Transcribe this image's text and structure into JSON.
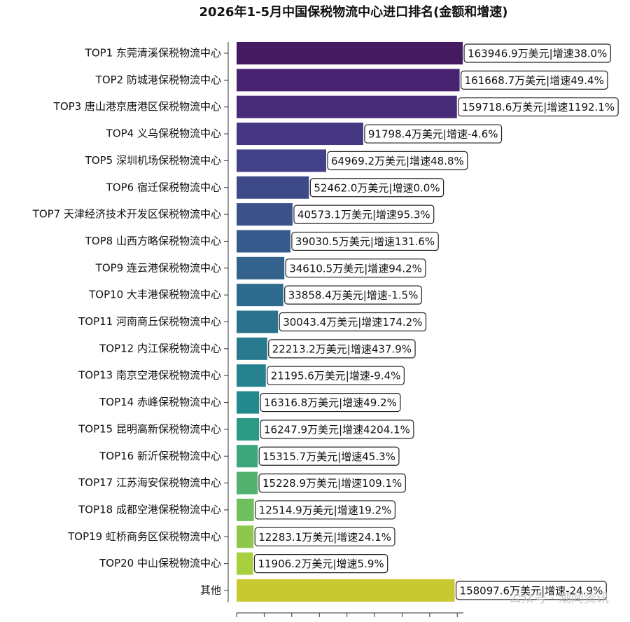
{
  "chart_data": {
    "type": "barh",
    "title": "2026年1-5月中国保税物流中心进口排名(金额和增速)",
    "categories": [
      "TOP1  东莞清溪保税物流中心",
      "TOP2  防城港保税物流中心",
      "TOP3  唐山港京唐港区保税物流中心",
      "TOP4  义乌保税物流中心",
      "TOP5  深圳机场保税物流中心",
      "TOP6  宿迁保税物流中心",
      "TOP7  天津经济技术开发区保税物流中心",
      "TOP8  山西方略保税物流中心",
      "TOP9  连云港保税物流中心",
      "TOP10  大丰港保税物流中心",
      "TOP11  河南商丘保税物流中心",
      "TOP12  内江保税物流中心",
      "TOP13  南京空港保税物流中心",
      "TOP14  赤峰保税物流中心",
      "TOP15  昆明高新保税物流中心",
      "TOP16  新沂保税物流中心",
      "TOP17  江苏海安保税物流中心",
      "TOP18  成都空港保税物流中心",
      "TOP19  虹桥商务区保税物流中心",
      "TOP20  中山保税物流中心",
      "其他"
    ],
    "values": [
      163946.9,
      161668.7,
      159718.6,
      91798.4,
      64969.2,
      52462,
      40573.1,
      39030.5,
      34610.5,
      33858.4,
      30043.4,
      22213.2,
      21195.6,
      16316.8,
      16247.9,
      15315.7,
      15228.9,
      12514.9,
      12283.1,
      11906.2,
      158097.6
    ],
    "value_labels": [
      "163946.9万美元|增速38.0%",
      "161668.7万美元|增速49.4%",
      "159718.6万美元|增速1192.1%",
      "91798.4万美元|增速-4.6%",
      "64969.2万美元|增速48.8%",
      "52462.0万美元|增速0.0%",
      "40573.1万美元|增速95.3%",
      "39030.5万美元|增速131.6%",
      "34610.5万美元|增速94.2%",
      "33858.4万美元|增速-1.5%",
      "30043.4万美元|增速174.2%",
      "22213.2万美元|增速437.9%",
      "21195.6万美元|增速-9.4%",
      "16316.8万美元|增速49.2%",
      "16247.9万美元|增速4204.1%",
      "15315.7万美元|增速45.3%",
      "15228.9万美元|增速109.1%",
      "12514.9万美元|增速19.2%",
      "12283.1万美元|增速24.1%",
      "11906.2万美元|增速5.9%",
      "158097.6万美元|增速-24.9%"
    ],
    "colors": [
      "#451a60",
      "#482372",
      "#472c7a",
      "#453781",
      "#424086",
      "#3e4989",
      "#3b528b",
      "#375a8c",
      "#33638d",
      "#2f6b8e",
      "#2c728e",
      "#29798e",
      "#26828e",
      "#23898e",
      "#2a9a82",
      "#3aa67a",
      "#52b26e",
      "#6fbf5e",
      "#8dc84d",
      "#a8cf3e",
      "#c8c832"
    ],
    "xlim": [
      0,
      170000
    ],
    "xticks": [
      0,
      20000,
      40000,
      60000,
      80000,
      100000,
      120000,
      140000,
      160000
    ],
    "annotation": "公众号 · 潮闻资讯"
  }
}
